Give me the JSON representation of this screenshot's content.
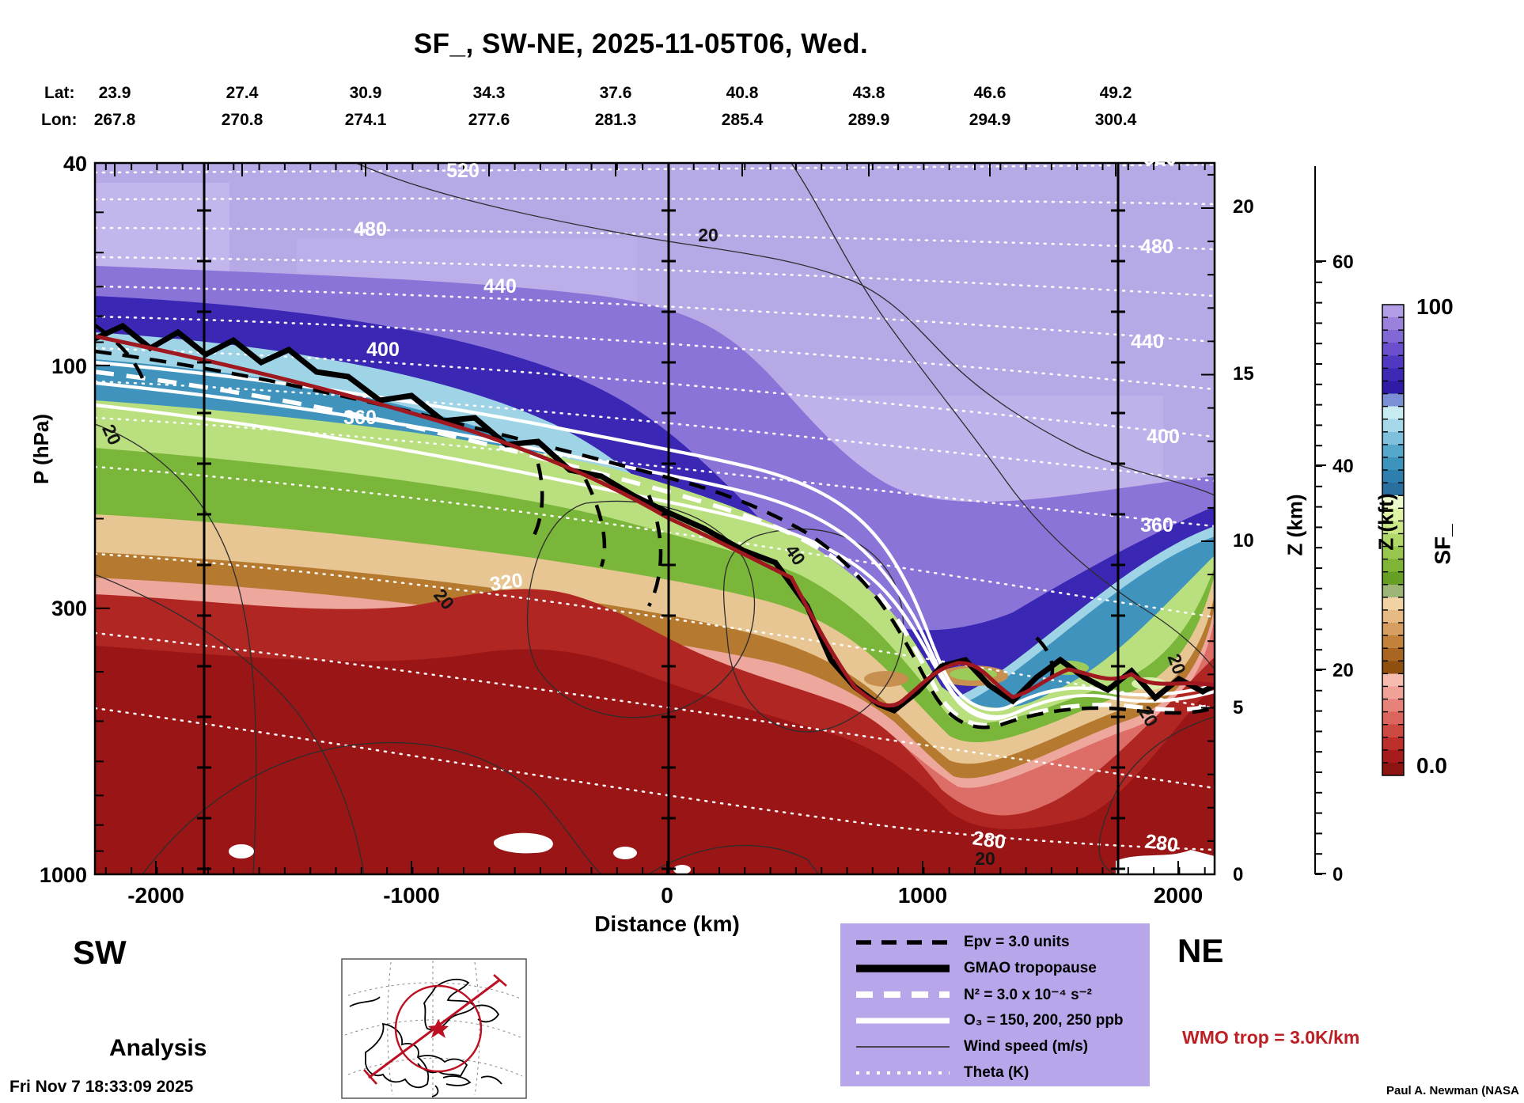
{
  "header": {
    "title": "SF_, SW-NE, 2025-11-05T06, Wed."
  },
  "top_axis": {
    "lat_label": "Lat:",
    "lon_label": "Lon:",
    "lat": [
      "23.9",
      "27.4",
      "30.9",
      "34.3",
      "37.6",
      "40.8",
      "43.8",
      "46.6",
      "49.2"
    ],
    "lon": [
      "267.8",
      "270.8",
      "274.1",
      "277.6",
      "281.3",
      "285.4",
      "289.9",
      "294.9",
      "300.4"
    ]
  },
  "y_axis": {
    "label": "P (hPa)",
    "ticks": [
      "40",
      "100",
      "300",
      "1000"
    ]
  },
  "z_km_axis": {
    "label": "Z (km)",
    "ticks": [
      "20",
      "15",
      "10",
      "5",
      "0"
    ]
  },
  "z_kft_axis": {
    "label": "Z (kft)",
    "ticks": [
      "60",
      "40",
      "20",
      "0"
    ]
  },
  "x_axis": {
    "label": "Distance (km)",
    "ticks": [
      "-2000",
      "-1000",
      "0",
      "1000",
      "2000"
    ]
  },
  "colorbar": {
    "label": "SF_",
    "max": "100",
    "min": "0.0"
  },
  "corners": {
    "sw": "SW",
    "ne": "NE"
  },
  "annotations": {
    "analysis": "Analysis",
    "wmo": "WMO trop = 3.0K/km",
    "timestamp": "Fri Nov  7 18:33:09 2025",
    "credit": "Paul A. Newman (NASA"
  },
  "legend": {
    "items": [
      {
        "label": "Epv = 3.0 units",
        "style": "black-dashed"
      },
      {
        "label": "GMAO tropopause",
        "style": "black-thick"
      },
      {
        "label": "N² = 3.0 x 10⁻⁴ s⁻²",
        "style": "white-dashed"
      },
      {
        "label": "O₃ = 150, 200, 250 ppb",
        "style": "white-solid"
      },
      {
        "label": "Wind speed (m/s)",
        "style": "black-thin"
      },
      {
        "label": "Theta (K)",
        "style": "white-dotted"
      }
    ]
  },
  "contour_labels": {
    "t520": "520",
    "t480": "480",
    "t440": "440",
    "t400": "400",
    "t360": "360",
    "t320": "320",
    "t280": "280",
    "w20": "20",
    "w40": "40"
  },
  "chart_data": {
    "type": "heatmap",
    "subtype": "atmospheric-vertical-cross-section",
    "title": "SF_, SW-NE, 2025-11-05T06, Wed.",
    "field_name": "SF_",
    "field_range": [
      0.0,
      100
    ],
    "section_orientation": {
      "left": "SW",
      "right": "NE"
    },
    "analysis_label": "Analysis",
    "x_axis": {
      "label": "Distance (km)",
      "range_km": [
        -2240,
        2170
      ],
      "ticks": [
        -2000,
        -1000,
        0,
        1000,
        2000
      ]
    },
    "y_axis": {
      "label": "P (hPa)",
      "scale": "log",
      "range_hPa": [
        40,
        1000
      ],
      "ticks": [
        40,
        100,
        300,
        1000
      ]
    },
    "z_km_ticks": [
      0,
      5,
      10,
      15,
      20
    ],
    "z_kft_ticks": [
      0,
      20,
      40,
      60
    ],
    "waypoints": {
      "lat": [
        23.9,
        27.4,
        30.9,
        34.3,
        37.6,
        40.8,
        43.8,
        46.6,
        49.2
      ],
      "lon": [
        267.8,
        270.8,
        274.1,
        277.6,
        281.3,
        285.4,
        289.9,
        294.9,
        300.4
      ]
    },
    "vertical_marker_lines_km": [
      -1810,
      0,
      1765
    ],
    "contours": {
      "theta_K": {
        "levels": [
          280,
          300,
          320,
          340,
          360,
          380,
          400,
          420,
          440,
          460,
          480,
          500,
          520
        ],
        "style": "white dotted"
      },
      "wind_speed_ms": {
        "labeled_levels": [
          20,
          40
        ],
        "style": "thin black"
      },
      "ozone_ppb": {
        "levels": [
          150,
          200,
          250
        ],
        "style": "thick white"
      },
      "epv_units": {
        "level": 3.0,
        "style": "black dashed"
      },
      "n2_s2": {
        "level": "3.0 x 10⁻⁴",
        "style": "white dashed"
      },
      "wmo_tropopause_lapse": "3.0K/km"
    },
    "tropopause_gmao_path_km_hPa": [
      [
        -2240,
        88
      ],
      [
        -1800,
        100
      ],
      [
        -1250,
        115
      ],
      [
        -800,
        150
      ],
      [
        -440,
        176
      ],
      [
        0,
        200
      ],
      [
        250,
        225
      ],
      [
        490,
        260
      ],
      [
        640,
        390
      ],
      [
        890,
        470
      ],
      [
        1100,
        395
      ],
      [
        1420,
        400
      ],
      [
        1760,
        395
      ],
      [
        2140,
        420
      ]
    ],
    "colorbar": {
      "label": "SF_",
      "min": 0.0,
      "max": 100,
      "colors": [
        "#8e1313",
        "#a61c1c",
        "#bc2f2a",
        "#cc4a42",
        "#db655c",
        "#e68279",
        "#f0a198",
        "#f6bcb0",
        "#8f4f0e",
        "#a96522",
        "#c2823c",
        "#d69e60",
        "#e6ba82",
        "#f0d2a4",
        "#9db677",
        "#679f24",
        "#7fb437",
        "#98c64e",
        "#b1d868",
        "#c9e786",
        "#def3a6",
        "#edfacb",
        "#2a6f9e",
        "#2f7fae",
        "#3c94bc",
        "#55a8cc",
        "#7fc0dc",
        "#a5d8e8",
        "#c6ecf2",
        "#7b8fd4",
        "#2f1ba6",
        "#3d2ab4",
        "#5038c2",
        "#6a50cc",
        "#8268d4",
        "#9a82dc",
        "#b29ee6"
      ]
    },
    "accent_colors": {
      "wmo_line": "#a01820",
      "legend_bg": "#b7a6ea",
      "map_marker": "#bb1122"
    }
  }
}
